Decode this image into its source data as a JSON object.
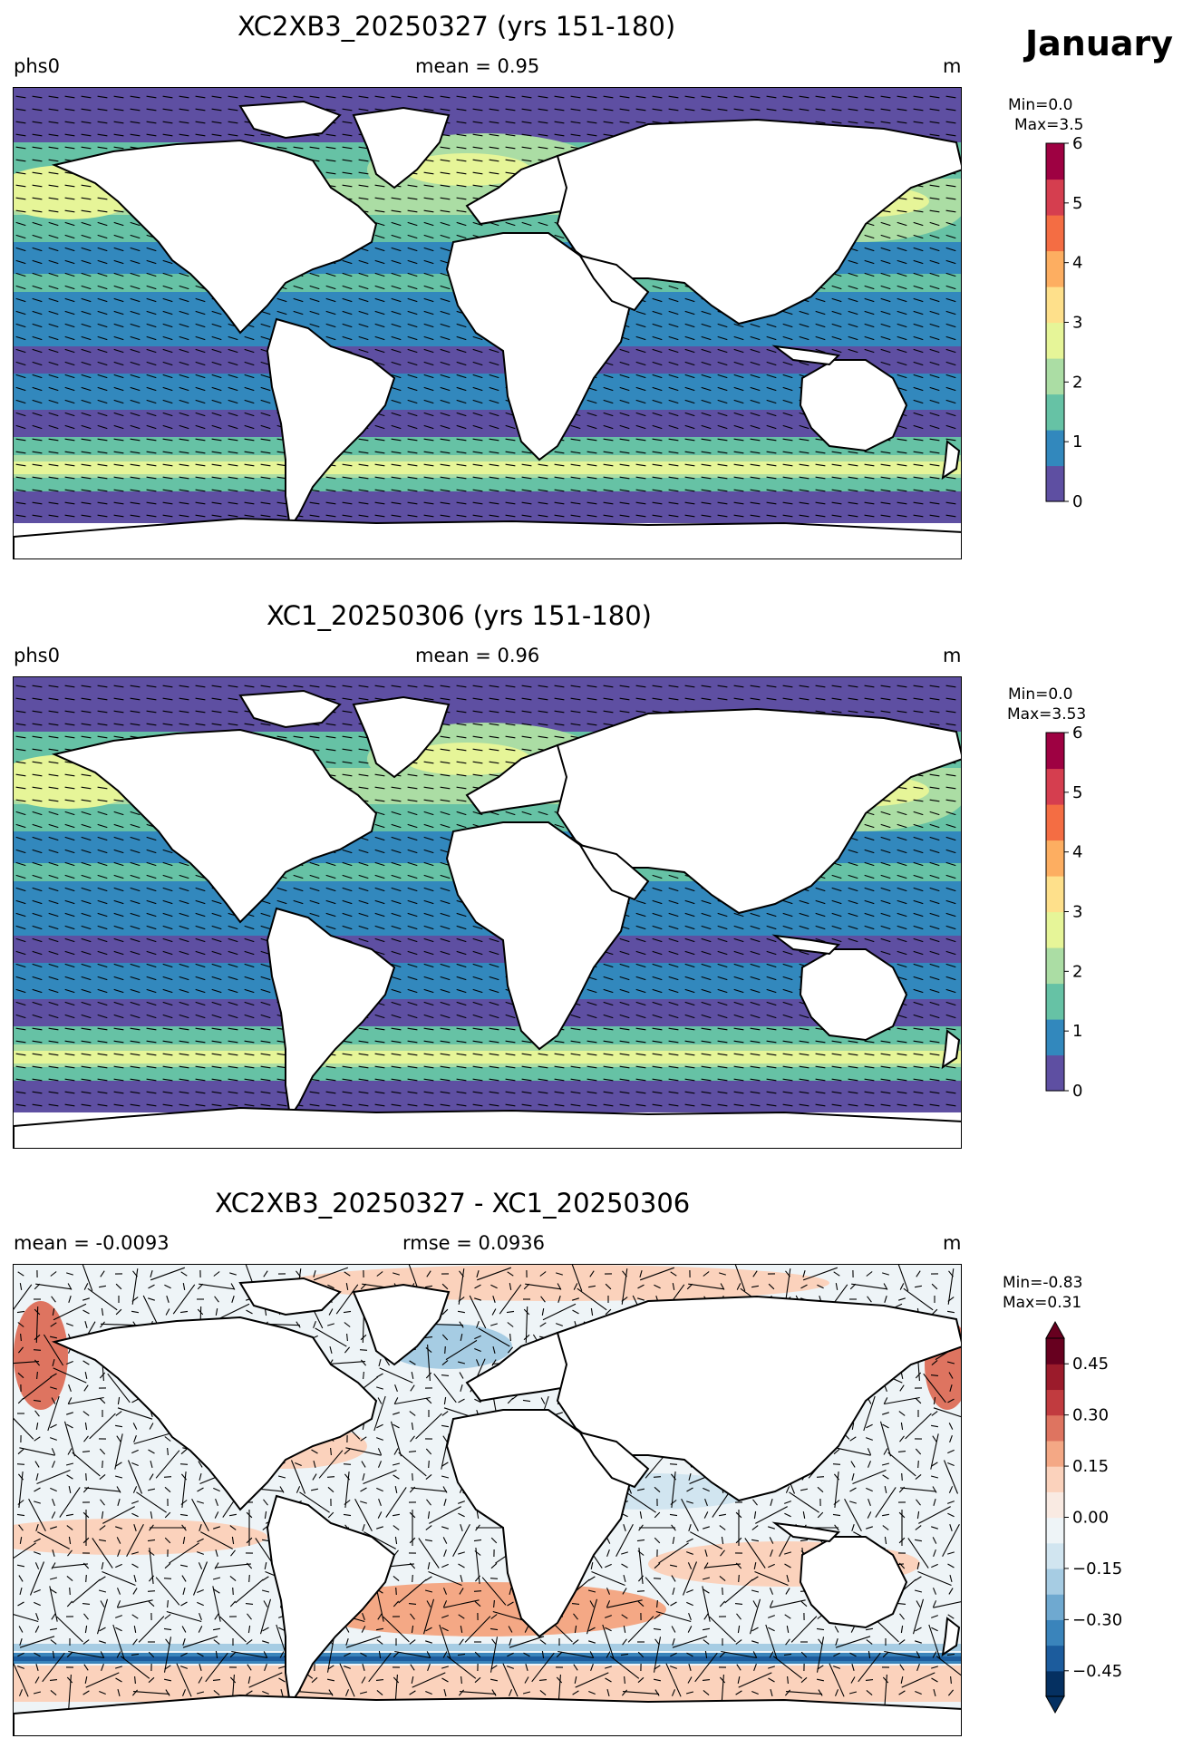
{
  "header": {
    "month": "January"
  },
  "panels": [
    {
      "id": "p1",
      "title": "XC2XB3_20250327 (yrs 151-180)",
      "left_label": "phs0",
      "center_label": "mean = 0.95",
      "right_label": "m",
      "stats": {
        "min": "Min=0.0",
        "max": "Max=3.5"
      },
      "colorbar": {
        "ticks": [
          "0",
          "1",
          "2",
          "3",
          "4",
          "5",
          "6"
        ],
        "colors": [
          "#5e4fa2",
          "#3288bd",
          "#66c2a5",
          "#abdda4",
          "#e6f598",
          "#fee08b",
          "#fdae61",
          "#f46d43",
          "#d53e4f",
          "#9e0142"
        ],
        "range": [
          0,
          6
        ],
        "extend": "none"
      }
    },
    {
      "id": "p2",
      "title": "XC1_20250306 (yrs 151-180)",
      "left_label": "phs0",
      "center_label": "mean = 0.96",
      "right_label": "m",
      "stats": {
        "min": "Min=0.0",
        "max": "Max=3.53"
      },
      "colorbar": {
        "ticks": [
          "0",
          "1",
          "2",
          "3",
          "4",
          "5",
          "6"
        ],
        "colors": [
          "#5e4fa2",
          "#3288bd",
          "#66c2a5",
          "#abdda4",
          "#e6f598",
          "#fee08b",
          "#fdae61",
          "#f46d43",
          "#d53e4f",
          "#9e0142"
        ],
        "range": [
          0,
          6
        ],
        "extend": "none"
      }
    },
    {
      "id": "p3",
      "title": "XC2XB3_20250327 - XC1_20250306",
      "left_label": "mean = -0.0093",
      "center_label": "rmse = 0.0936",
      "right_label": "m",
      "stats": {
        "min": "Min=-0.83",
        "max": "Max=0.31"
      },
      "colorbar": {
        "ticks": [
          "−0.45",
          "−0.30",
          "−0.15",
          "0.00",
          "0.15",
          "0.30",
          "0.45"
        ],
        "colors": [
          "#053061",
          "#1c5c9d",
          "#3a84bb",
          "#6fa9d0",
          "#a6cce3",
          "#d1e5f0",
          "#eef4f7",
          "#f9eae2",
          "#fbd2bc",
          "#f4a885",
          "#de7460",
          "#c13b3f",
          "#9b1b2b",
          "#67001f"
        ],
        "range": [
          -0.525,
          0.525
        ],
        "extend": "both"
      }
    }
  ]
}
